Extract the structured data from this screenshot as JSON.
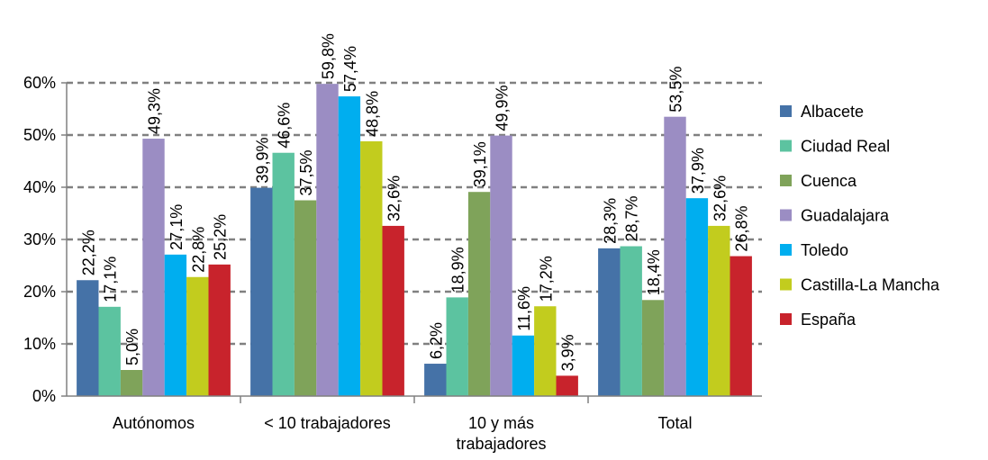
{
  "chart_data": {
    "type": "bar",
    "categories": [
      [
        "Autónomos"
      ],
      [
        "< 10 trabajadores"
      ],
      [
        "10 y más",
        "trabajadores"
      ],
      [
        "Total"
      ]
    ],
    "series": [
      {
        "name": "Albacete",
        "color": "#4572A7",
        "values": [
          22.2,
          39.9,
          6.2,
          28.3
        ],
        "labels": [
          "22,2%",
          "39,9%",
          "6,2%",
          "28,3%"
        ]
      },
      {
        "name": "Ciudad Real",
        "color": "#5CC3A0",
        "values": [
          17.1,
          46.6,
          18.9,
          28.7
        ],
        "labels": [
          "17,1%",
          "46,6%",
          "18,9%",
          "28,7%"
        ]
      },
      {
        "name": "Cuenca",
        "color": "#7FA35A",
        "values": [
          5.0,
          37.5,
          39.1,
          18.4
        ],
        "labels": [
          "5,0%",
          "37,5%",
          "39,1%",
          "18,4%"
        ]
      },
      {
        "name": "Guadalajara",
        "color": "#9B8DC3",
        "values": [
          49.3,
          59.8,
          49.9,
          53.5
        ],
        "labels": [
          "49,3%",
          "59,8%",
          "49,9%",
          "53,5%"
        ]
      },
      {
        "name": "Toledo",
        "color": "#00AEEF",
        "values": [
          27.1,
          57.4,
          11.6,
          37.9
        ],
        "labels": [
          "27,1%",
          "57,4%",
          "11,6%",
          "37,9%"
        ]
      },
      {
        "name": "Castilla-La Mancha",
        "color": "#C2CC1E",
        "values": [
          22.8,
          48.8,
          17.2,
          32.6
        ],
        "labels": [
          "22,8%",
          "48,8%",
          "17,2%",
          "32,6%"
        ]
      },
      {
        "name": "España",
        "color": "#C8232C",
        "values": [
          25.2,
          32.6,
          3.9,
          26.8
        ],
        "labels": [
          "25,2%",
          "32,6%",
          "3,9%",
          "26,8%"
        ]
      }
    ],
    "ylim": [
      0,
      60
    ],
    "yticks": [
      "0%",
      "10%",
      "20%",
      "30%",
      "40%",
      "50%",
      "60%"
    ],
    "grid": true,
    "gridline_color": "#808080",
    "legend_position": "right"
  }
}
